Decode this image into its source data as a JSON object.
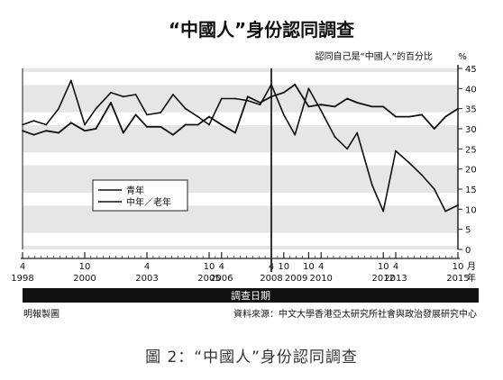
{
  "chart_data": {
    "type": "line",
    "title": "“中國人”身份認同調查",
    "subtitle": "認同自己是“中國人”的百分比",
    "y_unit": "%",
    "ylim": [
      0,
      45
    ],
    "y_ticks": [
      0,
      5,
      10,
      15,
      20,
      25,
      30,
      35,
      40,
      45
    ],
    "grid": false,
    "xlabel": "調查日期",
    "x_ticks_top": [
      {
        "t": 1998.25,
        "label": "4"
      },
      {
        "t": 2000.75,
        "label": "10"
      },
      {
        "t": 2003.25,
        "label": "4"
      },
      {
        "t": 2005.75,
        "label": "10"
      },
      {
        "t": 2006.25,
        "label": "4"
      },
      {
        "t": 2008.25,
        "label": "4"
      },
      {
        "t": 2008.75,
        "label": "10"
      },
      {
        "t": 2009.75,
        "label": "10"
      },
      {
        "t": 2010.25,
        "label": "4"
      },
      {
        "t": 2012.75,
        "label": "10"
      },
      {
        "t": 2013.25,
        "label": "4"
      },
      {
        "t": 2015.75,
        "label": "10"
      }
    ],
    "x_ticks_bottom": [
      {
        "t": 1998.25,
        "label": "1998"
      },
      {
        "t": 2000.75,
        "label": "2000"
      },
      {
        "t": 2003.25,
        "label": "2003"
      },
      {
        "t": 2005.75,
        "label": "2005"
      },
      {
        "t": 2006.25,
        "label": "2006"
      },
      {
        "t": 2008.25,
        "label": "2008"
      },
      {
        "t": 2009.25,
        "label": "2009"
      },
      {
        "t": 2010.25,
        "label": "2010"
      },
      {
        "t": 2012.75,
        "label": "2012"
      },
      {
        "t": 2013.25,
        "label": "2013"
      },
      {
        "t": 2015.75,
        "label": "2015"
      }
    ],
    "x_unit_top": "月",
    "x_unit_bottom": "年",
    "marker_line_t": 2008.25,
    "legend": [
      {
        "name": "青年",
        "series": 0
      },
      {
        "name": "中年／老年",
        "series": 1
      }
    ],
    "legend_position": "left-middle",
    "series": [
      {
        "name": "青年",
        "color": "#111111",
        "points": [
          [
            1998.25,
            31
          ],
          [
            1998.7,
            32
          ],
          [
            1999.2,
            31
          ],
          [
            1999.7,
            35
          ],
          [
            2000.2,
            42
          ],
          [
            2000.75,
            31
          ],
          [
            2001.2,
            35
          ],
          [
            2001.8,
            39
          ],
          [
            2002.3,
            38
          ],
          [
            2002.8,
            38.5
          ],
          [
            2003.25,
            33.5
          ],
          [
            2003.8,
            34
          ],
          [
            2004.3,
            38.5
          ],
          [
            2004.8,
            35
          ],
          [
            2005.3,
            33
          ],
          [
            2005.75,
            31
          ],
          [
            2006.25,
            37.5
          ],
          [
            2006.8,
            37.5
          ],
          [
            2007.3,
            37
          ],
          [
            2007.8,
            36
          ],
          [
            2008.25,
            41
          ],
          [
            2008.75,
            33.5
          ],
          [
            2009.2,
            28.5
          ],
          [
            2009.75,
            40
          ],
          [
            2010.25,
            34.5
          ],
          [
            2010.8,
            28
          ],
          [
            2011.3,
            25
          ],
          [
            2011.7,
            29
          ],
          [
            2012.3,
            16
          ],
          [
            2012.75,
            9.5
          ],
          [
            2013.25,
            24.5
          ],
          [
            2013.8,
            21.5
          ],
          [
            2014.3,
            18.5
          ],
          [
            2014.8,
            15
          ],
          [
            2015.25,
            9.5
          ],
          [
            2015.75,
            11
          ]
        ]
      },
      {
        "name": "中年／老年",
        "color": "#111111",
        "points": [
          [
            1998.25,
            29.5
          ],
          [
            1998.7,
            28.5
          ],
          [
            1999.2,
            29.5
          ],
          [
            1999.7,
            29
          ],
          [
            2000.2,
            31.5
          ],
          [
            2000.75,
            29.5
          ],
          [
            2001.2,
            30
          ],
          [
            2001.8,
            36.5
          ],
          [
            2002.3,
            29
          ],
          [
            2002.8,
            33.5
          ],
          [
            2003.25,
            30.5
          ],
          [
            2003.8,
            30.5
          ],
          [
            2004.3,
            28.5
          ],
          [
            2004.8,
            31
          ],
          [
            2005.3,
            31
          ],
          [
            2005.75,
            33
          ],
          [
            2006.25,
            31
          ],
          [
            2006.8,
            29
          ],
          [
            2007.3,
            38
          ],
          [
            2007.8,
            36.5
          ],
          [
            2008.25,
            38
          ],
          [
            2008.75,
            39
          ],
          [
            2009.2,
            41
          ],
          [
            2009.75,
            35.5
          ],
          [
            2010.25,
            36
          ],
          [
            2010.8,
            35.5
          ],
          [
            2011.3,
            37.5
          ],
          [
            2011.7,
            36.5
          ],
          [
            2012.3,
            35.5
          ],
          [
            2012.75,
            35.5
          ],
          [
            2013.25,
            33
          ],
          [
            2013.8,
            33
          ],
          [
            2014.3,
            33.5
          ],
          [
            2014.8,
            30
          ],
          [
            2015.25,
            33
          ],
          [
            2015.75,
            35
          ]
        ]
      }
    ],
    "footer_left": "明報製圖",
    "footer_right": "資料來源：中文大學香港亞太研究所社會與政治發展研究中心"
  },
  "caption": "圖 2：“中國人”身份認同調查"
}
